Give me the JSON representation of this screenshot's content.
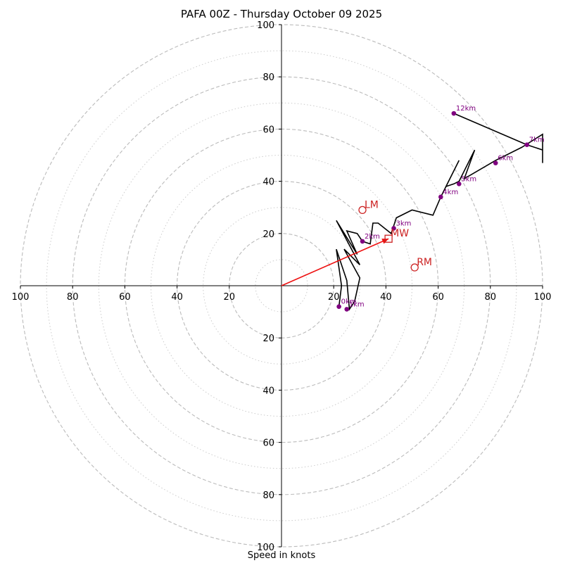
{
  "chart_data": {
    "type": "hodograph",
    "title": "PAFA 00Z - Thursday October 09 2025",
    "xlabel": "Speed in knots",
    "units": "knots",
    "max_speed": 100,
    "ring_major": [
      20,
      40,
      60,
      80,
      100
    ],
    "ring_minor": [
      10,
      30,
      50,
      70,
      90
    ],
    "tick_labels": [
      "20",
      "40",
      "60",
      "80",
      "100"
    ],
    "hodograph_trace": [
      [
        22,
        -8
      ],
      [
        23,
        0
      ],
      [
        21,
        14
      ],
      [
        25,
        2
      ],
      [
        26,
        -9
      ],
      [
        28,
        -6
      ],
      [
        30,
        3
      ],
      [
        24,
        14
      ],
      [
        30,
        8
      ],
      [
        21,
        25
      ],
      [
        29,
        12
      ],
      [
        25,
        21
      ],
      [
        29,
        20
      ],
      [
        31,
        17
      ],
      [
        34,
        16
      ],
      [
        35,
        24
      ],
      [
        37,
        24
      ],
      [
        42,
        20
      ],
      [
        43,
        23
      ],
      [
        44,
        26
      ],
      [
        50,
        29
      ],
      [
        58,
        27
      ],
      [
        61,
        34
      ],
      [
        68,
        48
      ],
      [
        63,
        38
      ],
      [
        66,
        39
      ],
      [
        68,
        40
      ],
      [
        74,
        52
      ],
      [
        70,
        41
      ],
      [
        82,
        48
      ],
      [
        92,
        53
      ],
      [
        100,
        58
      ],
      [
        100,
        47
      ],
      [
        100,
        52
      ],
      [
        94,
        54
      ],
      [
        66,
        66
      ]
    ],
    "height_markers": [
      {
        "label": "1km",
        "u": 25,
        "v": -9
      },
      {
        "label": "0km",
        "u": 22,
        "v": -8
      },
      {
        "label": "2km",
        "u": 31,
        "v": 17
      },
      {
        "label": "3km",
        "u": 43,
        "v": 22
      },
      {
        "label": "4km",
        "u": 61,
        "v": 34
      },
      {
        "label": "5km",
        "u": 68,
        "v": 39
      },
      {
        "label": "6km",
        "u": 82,
        "v": 47
      },
      {
        "label": "7km",
        "u": 94,
        "v": 54
      },
      {
        "label": "12km",
        "u": 66,
        "v": 66
      }
    ],
    "storm_motions": [
      {
        "label": "LM",
        "u": 31,
        "v": 29,
        "marker": "circle"
      },
      {
        "label": "MW",
        "u": 41,
        "v": 18,
        "marker": "square"
      },
      {
        "label": "RM",
        "u": 51,
        "v": 7,
        "marker": "circle"
      }
    ],
    "mean_wind_vector": {
      "u": 41,
      "v": 18
    },
    "colors": {
      "trace": "#000000",
      "markers": "#800080",
      "storm_motion": "#cc2222",
      "mean_wind_vector": "#ee1111",
      "grid": "#bbbbbb",
      "axes": "#000000"
    }
  }
}
